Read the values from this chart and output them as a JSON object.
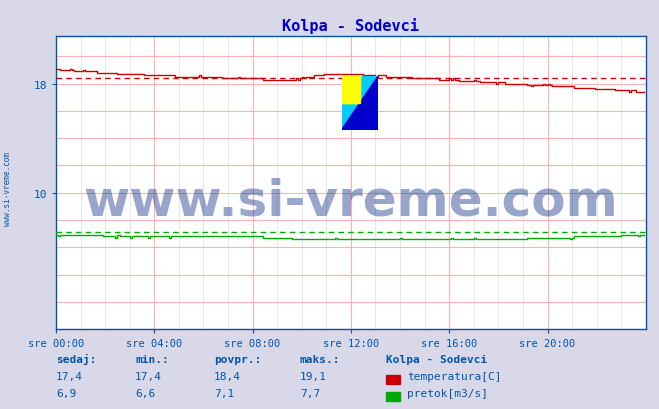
{
  "title": "Kolpa - Sodevci",
  "title_color": "#0000cc",
  "bg_color": "#d8d8e8",
  "plot_bg_color": "#ffffff",
  "x_ticks_labels": [
    "sre 00:00",
    "sre 04:00",
    "sre 08:00",
    "sre 12:00",
    "sre 16:00",
    "sre 20:00"
  ],
  "x_ticks_pos": [
    0,
    48,
    96,
    144,
    192,
    240
  ],
  "x_max": 288,
  "ylim_min": 0,
  "ylim_max": 21.5,
  "y_major_ticks": [
    0,
    2,
    4,
    6,
    8,
    10,
    12,
    14,
    16,
    18,
    20
  ],
  "y_label_ticks": [
    10,
    18
  ],
  "temp_avg": 18.4,
  "flow_avg": 7.1,
  "tick_color": "#0055aa",
  "watermark_text": "www.si-vreme.com",
  "watermark_color": "#1a3a8a",
  "watermark_alpha": 0.45,
  "watermark_fontsize": 36,
  "label_sedaj": "sedaj:",
  "label_min": "min.:",
  "label_povpr": "povpr.:",
  "label_maks": "maks.:",
  "label_station": "Kolpa - Sodevci",
  "temp_sedaj": "17,4",
  "temp_min": "17,4",
  "temp_povpr": "18,4",
  "temp_maks": "19,1",
  "flow_sedaj": "6,9",
  "flow_min": "6,6",
  "flow_povpr": "7,1",
  "flow_maks": "7,7",
  "temp_color": "#cc0000",
  "flow_color": "#00aa00",
  "sidebar_text": "www.si-vreme.com",
  "sidebar_color": "#0055aa",
  "grid_major_color": "#ffb0b0",
  "grid_minor_color": "#e0e0f0",
  "spine_color": "#0055aa"
}
